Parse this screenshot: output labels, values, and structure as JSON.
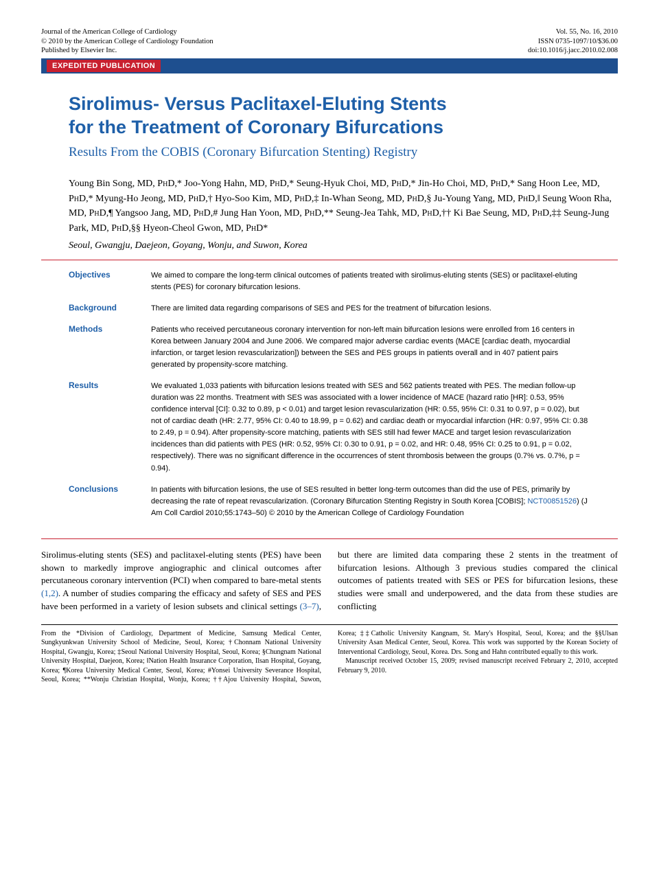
{
  "header": {
    "journal": "Journal of the American College of Cardiology",
    "copyright": "© 2010 by the American College of Cardiology Foundation",
    "publisher": "Published by Elsevier Inc.",
    "volume": "Vol. 55, No. 16, 2010",
    "issn": "ISSN 0735-1097/10/$36.00",
    "doi": "doi:10.1016/j.jacc.2010.02.008"
  },
  "pub_type": "EXPEDITED PUBLICATION",
  "title": {
    "line1": "Sirolimus- Versus Paclitaxel-Eluting Stents",
    "line2": "for the Treatment of Coronary Bifurcations"
  },
  "subtitle": "Results From the COBIS (Coronary Bifurcation Stenting) Registry",
  "authors_html": "Young Bin Song, MD, P<span class='sc'>h</span>D,* Joo-Yong Hahn, MD, P<span class='sc'>h</span>D,* Seung-Hyuk Choi, MD, P<span class='sc'>h</span>D,* Jin-Ho Choi, MD, P<span class='sc'>h</span>D,* Sang Hoon Lee, MD, P<span class='sc'>h</span>D,* Myung-Ho Jeong, MD, P<span class='sc'>h</span>D,† Hyo-Soo Kim, MD, P<span class='sc'>h</span>D,‡ In-Whan Seong, MD, P<span class='sc'>h</span>D,§ Ju-Young Yang, MD, P<span class='sc'>h</span>D,‖ Seung Woon Rha, MD, P<span class='sc'>h</span>D,¶ Yangsoo Jang, MD, P<span class='sc'>h</span>D,# Jung Han Yoon, MD, P<span class='sc'>h</span>D,** Seung-Jea Tahk, MD, P<span class='sc'>h</span>D,†† Ki Bae Seung, MD, P<span class='sc'>h</span>D,‡‡ Seung-Jung Park, MD, P<span class='sc'>h</span>D,§§ Hyeon-Cheol Gwon, MD, P<span class='sc'>h</span>D*",
  "locations": "Seoul, Gwangju, Daejeon, Goyang, Wonju, and Suwon, Korea",
  "abstract": {
    "objectives": {
      "label": "Objectives",
      "text": "We aimed to compare the long-term clinical outcomes of patients treated with sirolimus-eluting stents (SES) or paclitaxel-eluting stents (PES) for coronary bifurcation lesions."
    },
    "background": {
      "label": "Background",
      "text": "There are limited data regarding comparisons of SES and PES for the treatment of bifurcation lesions."
    },
    "methods": {
      "label": "Methods",
      "text": "Patients who received percutaneous coronary intervention for non-left main bifurcation lesions were enrolled from 16 centers in Korea between January 2004 and June 2006. We compared major adverse cardiac events (MACE [cardiac death, myocardial infarction, or target lesion revascularization]) between the SES and PES groups in patients overall and in 407 patient pairs generated by propensity-score matching."
    },
    "results": {
      "label": "Results",
      "text": "We evaluated 1,033 patients with bifurcation lesions treated with SES and 562 patients treated with PES. The median follow-up duration was 22 months. Treatment with SES was associated with a lower incidence of MACE (hazard ratio [HR]: 0.53, 95% confidence interval [CI]: 0.32 to 0.89, p < 0.01) and target lesion revascularization (HR: 0.55, 95% CI: 0.31 to 0.97, p = 0.02), but not of cardiac death (HR: 2.77, 95% CI: 0.40 to 18.99, p = 0.62) and cardiac death or myocardial infarction (HR: 0.97, 95% CI: 0.38 to 2.49, p = 0.94). After propensity-score matching, patients with SES still had fewer MACE and target lesion revascularization incidences than did patients with PES (HR: 0.52, 95% CI: 0.30 to 0.91, p = 0.02, and HR: 0.48, 95% CI: 0.25 to 0.91, p = 0.02, respectively). There was no significant difference in the occurrences of stent thrombosis between the groups (0.7% vs. 0.7%, p = 0.94)."
    },
    "conclusions": {
      "label": "Conclusions",
      "text_before": "In patients with bifurcation lesions, the use of SES resulted in better long-term outcomes than did the use of PES, primarily by decreasing the rate of repeat revascularization. (Coronary Bifurcation Stenting Registry in South Korea [COBIS]; ",
      "trial_link": "NCT00851526",
      "text_after": ")   (J Am Coll Cardiol 2010;55:1743–50) © 2010 by the American College of Cardiology Foundation"
    }
  },
  "body": {
    "col1": "Sirolimus-eluting stents (SES) and paclitaxel-eluting stents (PES) have been shown to markedly improve angiographic and clinical outcomes after percutaneous coronary intervention (PCI) when compared to bare-metal stents ",
    "refs1": "(1,2)",
    "col1b": ". A number of studies comparing the efficacy and safety of SES and PES have been performed in a variety of lesion subsets ",
    "col2a": "and clinical settings ",
    "refs2": "(3–7)",
    "col2b": ", but there are limited data comparing these 2 stents in the treatment of bifurcation lesions. Although 3 previous studies compared the clinical outcomes of patients treated with SES or PES for bifurcation lesions, these studies were small and underpowered, and the data from these studies are conflicting"
  },
  "footnotes": {
    "left": "From the *Division of Cardiology, Department of Medicine, Samsung Medical Center, Sungkyunkwan University School of Medicine, Seoul, Korea; †Chonnam National University Hospital, Gwangju, Korea; ‡Seoul National University Hospital, Seoul, Korea; §Chungnam National University Hospital, Daejeon, Korea; ‖Nation Health Insurance Corporation, Ilsan Hospital, Goyang, Korea; ¶Korea University Medical Center, Seoul, Korea; #Yonsei University Severance Hospital, Seoul, Korea; **Wonju Christian Hospital, Wonju, Korea; ††Ajou",
    "right": "University Hospital, Suwon, Korea; ‡‡Catholic University Kangnam, St. Mary's Hospital, Seoul, Korea; and the §§Ulsan University Asan Medical Center, Seoul, Korea. This work was supported by the Korean Society of Interventional Cardiology, Seoul, Korea. Drs. Song and Hahn contributed equally to this work.",
    "manuscript": "Manuscript received October 15, 2009; revised manuscript received February 2, 2010, accepted February 9, 2010."
  },
  "colors": {
    "brand_blue": "#1e5fa8",
    "bar_blue": "#1e4f8f",
    "accent_red": "#c8202f",
    "text_black": "#000000",
    "background": "#ffffff"
  },
  "typography": {
    "title_fontsize_pt": 20,
    "subtitle_fontsize_pt": 14,
    "abstract_label_fontsize_pt": 9,
    "abstract_text_fontsize_pt": 8,
    "body_fontsize_pt": 10,
    "footnote_fontsize_pt": 7.5
  }
}
